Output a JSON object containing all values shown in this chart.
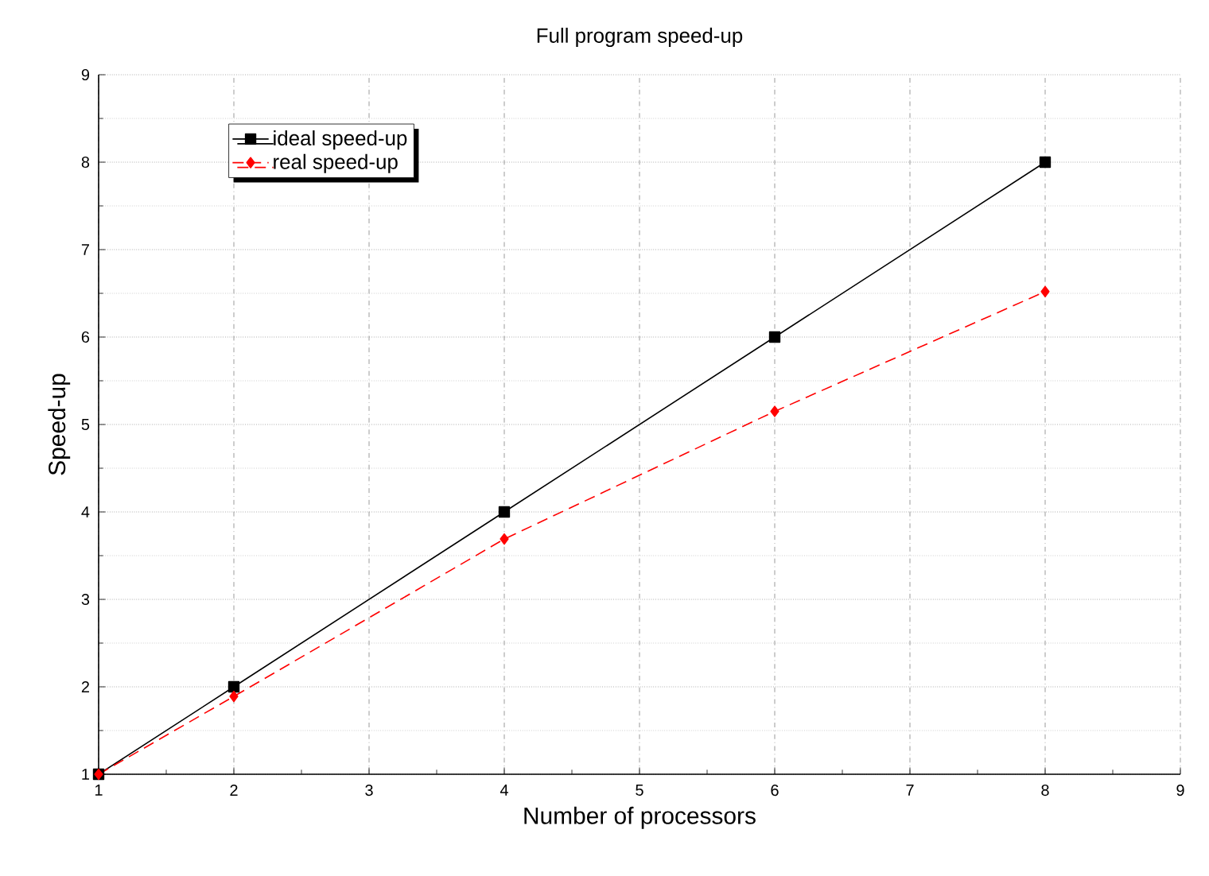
{
  "chart_data": {
    "type": "line",
    "title": "Full program speed-up",
    "xlabel": "Number of processors",
    "ylabel": "Speed-up",
    "x": [
      1,
      2,
      4,
      6,
      8
    ],
    "series": [
      {
        "name": "ideal speed-up",
        "color": "#000000",
        "values": [
          1,
          2,
          4,
          6,
          8
        ],
        "marker": "square",
        "line_style": "solid"
      },
      {
        "name": "real speed-up",
        "color": "#ff0000",
        "values": [
          1,
          1.89,
          3.69,
          5.15,
          6.52
        ],
        "marker": "diamond",
        "line_style": "dashed"
      }
    ],
    "xlim": [
      1,
      9
    ],
    "xticks": [
      1,
      2,
      3,
      4,
      5,
      6,
      7,
      8,
      9
    ],
    "ylim": [
      1,
      9
    ],
    "yticks": [
      1,
      2,
      3,
      4,
      5,
      6,
      7,
      8,
      9
    ],
    "grid": true,
    "legend": "top left"
  }
}
